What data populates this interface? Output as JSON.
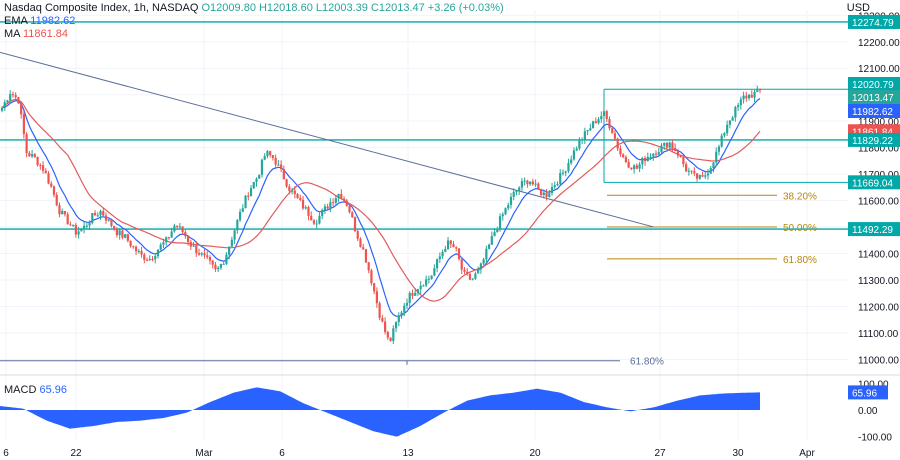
{
  "header": {
    "title": "Nasdaq Composite Index, 1h, NASDAQ",
    "ohlc": "O12009.80 H12018.60 L12003.39 C12013.47 +3.26 (+0.03%)",
    "ema_label": "EMA",
    "ema_value": "11982.62",
    "ma_label": "MA",
    "ma_value": "11861.84",
    "currency": "USD"
  },
  "macd": {
    "label": "MACD",
    "value": "65.96"
  },
  "colors": {
    "up": "#26a69a",
    "down": "#ef5350",
    "ema": "#2962ff",
    "ma": "#e05c5c",
    "level": "#00a8a8",
    "fib": "#b8860b",
    "trend": "#5b6f9a",
    "macd": "#2962ff"
  },
  "chart_data": {
    "type": "candlestick",
    "title": "Nasdaq Composite Index, 1h, NASDAQ",
    "ylim": [
      10960,
      12320
    ],
    "y_ticks": [
      11000,
      11100,
      11200,
      11300,
      11400,
      11500,
      11600,
      11700,
      11800,
      11900,
      12000,
      12100,
      12200,
      12300
    ],
    "y_tick_labels": [
      "11000.00",
      "11100.00",
      "11200.00",
      "11300.00",
      "11400.00",
      "11500.00",
      "11600.00",
      "11700.00",
      "11800.00",
      "11900.00",
      "12000.00",
      "12100.00",
      "12200.00",
      "12300.00"
    ],
    "x_ticks": [
      "6",
      "22",
      "Mar",
      "6",
      "13",
      "20",
      "27",
      "30",
      "Apr"
    ],
    "horizontal_levels": [
      {
        "value": 12274.79,
        "label": "12274.79"
      },
      {
        "value": 11829.22,
        "label": "11829.22"
      },
      {
        "value": 11492.29,
        "label": "11492.29"
      }
    ],
    "range_levels": [
      {
        "value": 12020.79,
        "label": "12020.79"
      },
      {
        "value": 11669.04,
        "label": "11669.04"
      }
    ],
    "fib_levels": [
      {
        "value": 11620,
        "label": "38.20%"
      },
      {
        "value": 11500,
        "label": "50.00%"
      },
      {
        "value": 11380,
        "label": "61.80%"
      },
      {
        "value": 10995,
        "label": "61.80%"
      }
    ],
    "price_badges": [
      {
        "value": 12020.79,
        "label": "12020.79"
      },
      {
        "value": 12013.47,
        "label": "12013.47"
      },
      {
        "value": 11982.62,
        "label": "11982.62"
      },
      {
        "value": 11861.84,
        "label": "11861.84"
      },
      {
        "value": 11829.22,
        "label": "11829.22"
      },
      {
        "value": 11669.04,
        "label": "11669.04"
      },
      {
        "value": 11492.29,
        "label": "11492.29"
      }
    ],
    "close_path": [
      [
        0,
        11950
      ],
      [
        6,
        12010
      ],
      [
        12,
        11980
      ],
      [
        18,
        11780
      ],
      [
        24,
        11760
      ],
      [
        30,
        11720
      ],
      [
        36,
        11650
      ],
      [
        42,
        11560
      ],
      [
        48,
        11520
      ],
      [
        54,
        11480
      ],
      [
        60,
        11500
      ],
      [
        66,
        11540
      ],
      [
        72,
        11560
      ],
      [
        78,
        11520
      ],
      [
        84,
        11480
      ],
      [
        90,
        11460
      ],
      [
        96,
        11420
      ],
      [
        102,
        11390
      ],
      [
        108,
        11380
      ],
      [
        114,
        11420
      ],
      [
        120,
        11450
      ],
      [
        126,
        11510
      ],
      [
        132,
        11480
      ],
      [
        138,
        11430
      ],
      [
        144,
        11400
      ],
      [
        150,
        11370
      ],
      [
        156,
        11330
      ],
      [
        162,
        11380
      ],
      [
        168,
        11470
      ],
      [
        174,
        11560
      ],
      [
        180,
        11640
      ],
      [
        186,
        11690
      ],
      [
        192,
        11780
      ],
      [
        198,
        11760
      ],
      [
        204,
        11700
      ],
      [
        210,
        11640
      ],
      [
        216,
        11600
      ],
      [
        222,
        11560
      ],
      [
        228,
        11520
      ],
      [
        234,
        11560
      ],
      [
        240,
        11600
      ],
      [
        246,
        11630
      ],
      [
        252,
        11580
      ],
      [
        258,
        11480
      ],
      [
        264,
        11400
      ],
      [
        270,
        11280
      ],
      [
        276,
        11150
      ],
      [
        282,
        11060
      ],
      [
        288,
        11150
      ],
      [
        294,
        11220
      ],
      [
        300,
        11260
      ],
      [
        306,
        11290
      ],
      [
        312,
        11310
      ],
      [
        318,
        11380
      ],
      [
        324,
        11440
      ],
      [
        330,
        11420
      ],
      [
        336,
        11320
      ],
      [
        342,
        11300
      ],
      [
        348,
        11340
      ],
      [
        354,
        11420
      ],
      [
        360,
        11500
      ],
      [
        366,
        11560
      ],
      [
        372,
        11620
      ],
      [
        378,
        11660
      ],
      [
        384,
        11680
      ],
      [
        390,
        11640
      ],
      [
        396,
        11620
      ],
      [
        402,
        11660
      ],
      [
        408,
        11700
      ],
      [
        414,
        11760
      ],
      [
        420,
        11820
      ],
      [
        426,
        11860
      ],
      [
        432,
        11900
      ],
      [
        438,
        11930
      ],
      [
        444,
        11870
      ],
      [
        450,
        11780
      ],
      [
        456,
        11740
      ],
      [
        462,
        11720
      ],
      [
        468,
        11760
      ],
      [
        474,
        11780
      ],
      [
        480,
        11800
      ],
      [
        486,
        11820
      ],
      [
        492,
        11780
      ],
      [
        498,
        11720
      ],
      [
        504,
        11690
      ],
      [
        510,
        11680
      ],
      [
        516,
        11730
      ],
      [
        522,
        11800
      ],
      [
        528,
        11890
      ],
      [
        534,
        11940
      ],
      [
        540,
        11990
      ],
      [
        546,
        12000
      ],
      [
        552,
        12013
      ]
    ],
    "ema_period": 9,
    "ma_period": 25,
    "macd_ylim": [
      -120,
      120
    ],
    "macd_ticks": [
      100,
      0,
      -100
    ],
    "macd_tick_labels": [
      "100.00",
      "0.00",
      "-100.00"
    ],
    "macd_path": [
      [
        0,
        15
      ],
      [
        20,
        5
      ],
      [
        40,
        -40
      ],
      [
        60,
        -70
      ],
      [
        80,
        -60
      ],
      [
        100,
        -45
      ],
      [
        120,
        -40
      ],
      [
        140,
        -30
      ],
      [
        160,
        -10
      ],
      [
        180,
        30
      ],
      [
        200,
        65
      ],
      [
        220,
        85
      ],
      [
        240,
        70
      ],
      [
        260,
        25
      ],
      [
        280,
        -10
      ],
      [
        300,
        -45
      ],
      [
        320,
        -80
      ],
      [
        340,
        -100
      ],
      [
        360,
        -60
      ],
      [
        380,
        -10
      ],
      [
        400,
        35
      ],
      [
        420,
        55
      ],
      [
        440,
        65
      ],
      [
        460,
        80
      ],
      [
        480,
        65
      ],
      [
        500,
        30
      ],
      [
        520,
        10
      ],
      [
        540,
        -5
      ],
      [
        560,
        10
      ],
      [
        580,
        35
      ],
      [
        600,
        55
      ],
      [
        620,
        62
      ],
      [
        640,
        65
      ],
      [
        651,
        66
      ]
    ]
  }
}
